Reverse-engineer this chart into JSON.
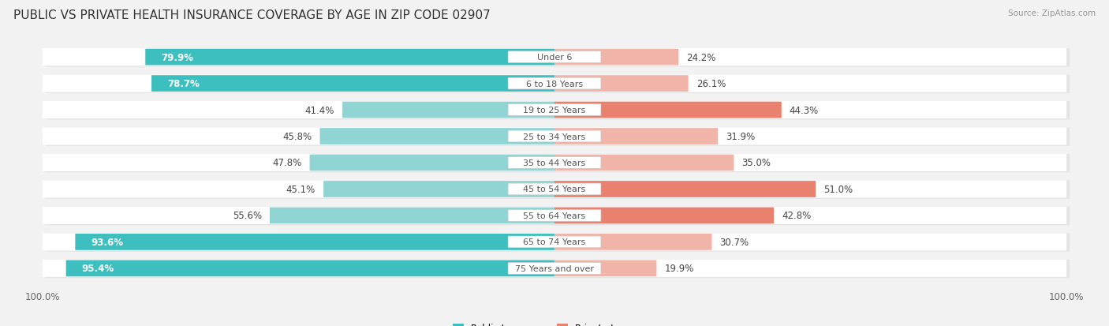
{
  "title": "PUBLIC VS PRIVATE HEALTH INSURANCE COVERAGE BY AGE IN ZIP CODE 02907",
  "source": "Source: ZipAtlas.com",
  "categories": [
    "Under 6",
    "6 to 18 Years",
    "19 to 25 Years",
    "25 to 34 Years",
    "35 to 44 Years",
    "45 to 54 Years",
    "55 to 64 Years",
    "65 to 74 Years",
    "75 Years and over"
  ],
  "public_values": [
    79.9,
    78.7,
    41.4,
    45.8,
    47.8,
    45.1,
    55.6,
    93.6,
    95.4
  ],
  "private_values": [
    24.2,
    26.1,
    44.3,
    31.9,
    35.0,
    51.0,
    42.8,
    30.7,
    19.9
  ],
  "public_color_dark": "#3dbfbf",
  "public_color_light": "#90d4d4",
  "private_color_dark": "#e8826e",
  "private_color_light": "#f0b4a8",
  "bar_height": 0.62,
  "background_color": "#f2f2f2",
  "row_bg_color": "#ffffff",
  "row_shadow_color": "#d8d8d8",
  "title_fontsize": 11,
  "label_fontsize": 8.5,
  "category_fontsize": 8.0,
  "pub_dark_threshold": 70,
  "prv_dark_threshold": 40
}
